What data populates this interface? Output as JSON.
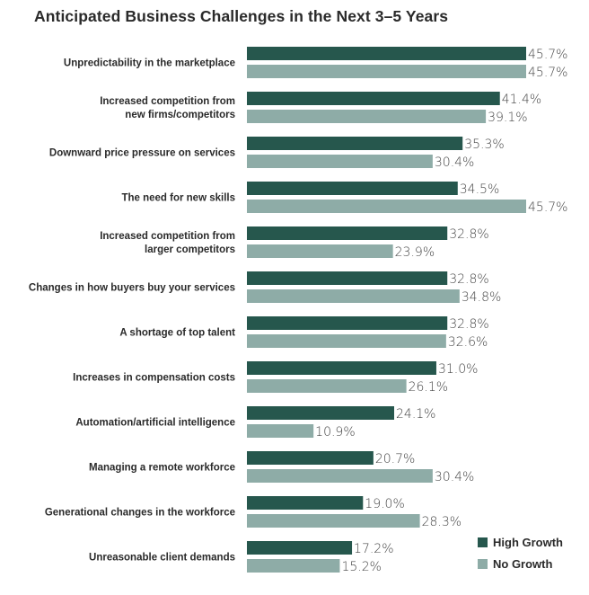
{
  "chart_data": {
    "type": "bar",
    "orientation": "horizontal",
    "title": "Anticipated Business Challenges in the Next 3–5 Years",
    "categories": [
      [
        "Unpredictability in the marketplace"
      ],
      [
        "Increased competition from",
        "new firms/competitors"
      ],
      [
        "Downward price pressure on services"
      ],
      [
        "The need for new skills"
      ],
      [
        "Increased competition from",
        "larger competitors"
      ],
      [
        "Changes in how buyers buy your services"
      ],
      [
        "A shortage of top talent"
      ],
      [
        "Increases in compensation costs"
      ],
      [
        "Automation/artificial intelligence"
      ],
      [
        "Managing a remote workforce"
      ],
      [
        "Generational changes in the workforce"
      ],
      [
        "Unreasonable client demands"
      ]
    ],
    "series": [
      {
        "name": "High Growth",
        "color": "#26574d",
        "values": [
          45.7,
          41.4,
          35.3,
          34.5,
          32.8,
          32.8,
          32.8,
          31.0,
          24.1,
          20.7,
          19.0,
          17.2
        ]
      },
      {
        "name": "No Growth",
        "color": "#8eaca7",
        "values": [
          45.7,
          39.1,
          30.4,
          45.7,
          23.9,
          34.8,
          32.6,
          26.1,
          10.9,
          30.4,
          28.3,
          15.2
        ]
      }
    ],
    "value_suffix": "%",
    "legend_position": "bottom-right",
    "grid": false
  }
}
